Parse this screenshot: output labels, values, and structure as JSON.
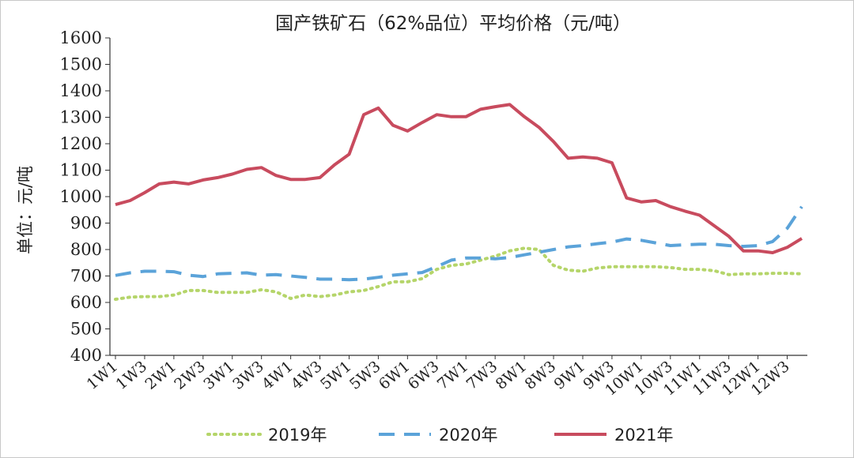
{
  "chart_data": {
    "type": "line",
    "title": "国产铁矿石（62%品位）平均价格（元/吨）",
    "ylabel": "单位：元/吨",
    "xlabel": "",
    "ylim": [
      400,
      1600
    ],
    "yticks": [
      400,
      500,
      600,
      700,
      800,
      900,
      1000,
      1100,
      1200,
      1300,
      1400,
      1500,
      1600
    ],
    "xtick_labels": [
      "1W1",
      "1W3",
      "2W1",
      "2W3",
      "3W1",
      "3W3",
      "4W1",
      "4W3",
      "5W1",
      "5W3",
      "6W1",
      "6W3",
      "7W1",
      "7W3",
      "8W1",
      "8W3",
      "9W1",
      "9W3",
      "10W1",
      "10W3",
      "11W1",
      "11W3",
      "12W1",
      "12W3"
    ],
    "grid": false,
    "legend_position": "bottom",
    "series": [
      {
        "name": "2019年",
        "color": "#b5d56a",
        "style": "dotted",
        "values": [
          612,
          620,
          622,
          622,
          628,
          645,
          645,
          638,
          638,
          638,
          648,
          640,
          615,
          628,
          622,
          628,
          640,
          645,
          660,
          678,
          678,
          690,
          725,
          740,
          745,
          760,
          775,
          795,
          805,
          800,
          740,
          722,
          718,
          730,
          735,
          735,
          735,
          735,
          732,
          725,
          725,
          720,
          705,
          708,
          708,
          710,
          710,
          708
        ]
      },
      {
        "name": "2020年",
        "color": "#5ba3d9",
        "style": "dashed",
        "values": [
          702,
          712,
          718,
          718,
          716,
          703,
          698,
          708,
          710,
          712,
          703,
          705,
          700,
          695,
          688,
          688,
          686,
          688,
          695,
          703,
          708,
          713,
          735,
          760,
          768,
          768,
          765,
          770,
          780,
          790,
          800,
          810,
          815,
          822,
          828,
          840,
          835,
          825,
          815,
          818,
          820,
          820,
          815,
          812,
          815,
          830,
          880,
          962
        ]
      },
      {
        "name": "2021年",
        "color": "#c84b5e",
        "style": "solid",
        "values": [
          970,
          985,
          1015,
          1048,
          1055,
          1048,
          1063,
          1072,
          1085,
          1103,
          1110,
          1080,
          1065,
          1065,
          1072,
          1120,
          1160,
          1310,
          1335,
          1270,
          1248,
          1280,
          1310,
          1302,
          1302,
          1330,
          1340,
          1348,
          1302,
          1262,
          1208,
          1145,
          1150,
          1145,
          1128,
          995,
          980,
          985,
          962,
          945,
          930,
          890,
          850,
          795,
          795,
          788,
          808,
          842
        ]
      }
    ]
  }
}
